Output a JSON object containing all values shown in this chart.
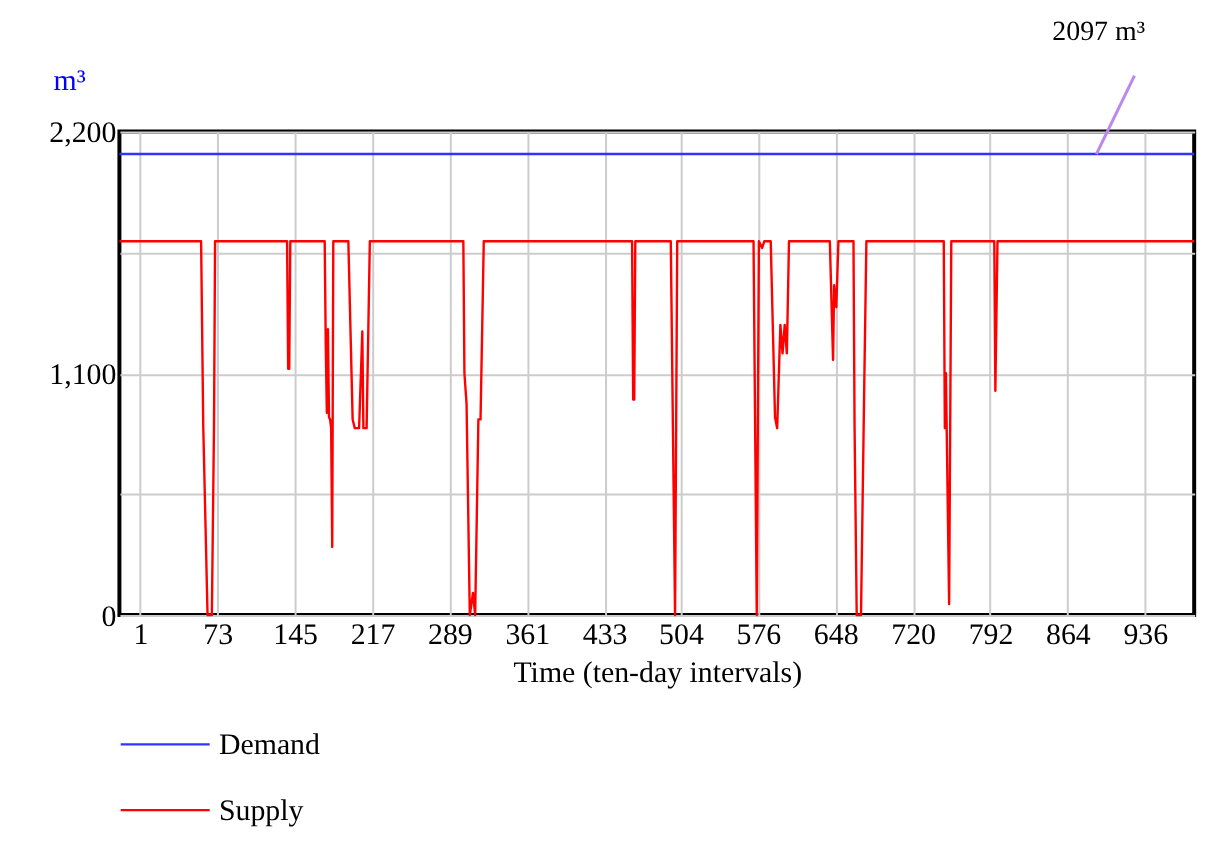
{
  "chart_data": {
    "type": "line",
    "xlabel": "Time (ten-day intervals)",
    "ylabel": "m³",
    "xlim": [
      -18,
      982
    ],
    "xticks": [
      1,
      73,
      145,
      217,
      289,
      361,
      433,
      504,
      576,
      648,
      720,
      792,
      864,
      936
    ],
    "ylim": [
      0,
      2200
    ],
    "yticks": [
      0,
      {
        "value": 550,
        "label": null
      },
      {
        "value": 1100,
        "label": "1,100"
      },
      {
        "value": 1650,
        "label": null
      },
      {
        "value": 2200,
        "label": "2,200"
      }
    ],
    "grid": true,
    "legend": "bottom",
    "line_style": "solid",
    "annotations": [
      {
        "text": "2097 m³",
        "x": 891,
        "y": 2097
      }
    ],
    "series": [
      {
        "name": "Demand",
        "color": "#3333ff",
        "x": [
          -18,
          982
        ],
        "values": [
          2097,
          2097
        ]
      },
      {
        "name": "Supply",
        "color": "#ff0000",
        "x": [
          -18,
          58,
          60,
          64,
          68,
          70,
          71,
          138,
          139,
          140,
          141,
          173,
          174,
          175,
          176,
          177,
          178,
          179,
          180,
          181,
          182,
          195,
          199,
          201,
          205,
          208,
          209,
          212,
          215,
          216,
          302,
          303,
          305,
          308,
          311,
          313,
          316,
          318,
          321,
          459,
          460,
          461,
          462,
          495,
          499,
          501,
          572,
          575,
          577,
          580,
          582,
          588,
          592,
          594,
          597,
          599,
          601,
          603,
          605,
          643,
          646,
          647,
          649,
          651,
          665,
          666,
          668,
          672,
          675,
          677,
          749,
          750,
          751,
          754,
          756,
          796,
          797,
          799,
          982
        ],
        "values": [
          1700,
          1700,
          860,
          0,
          0,
          860,
          1700,
          1700,
          1120,
          1120,
          1700,
          1700,
          1220,
          920,
          1300,
          900,
          890,
          850,
          310,
          1700,
          1700,
          1700,
          890,
          850,
          850,
          1290,
          850,
          850,
          1700,
          1700,
          1700,
          1100,
          960,
          0,
          100,
          0,
          890,
          890,
          1700,
          1700,
          980,
          980,
          1700,
          1700,
          0,
          1700,
          1700,
          0,
          1700,
          1670,
          1700,
          1700,
          900,
          850,
          1320,
          1190,
          1320,
          1190,
          1700,
          1700,
          1160,
          1500,
          1400,
          1700,
          1700,
          860,
          0,
          0,
          1040,
          1700,
          1700,
          850,
          1100,
          50,
          1700,
          1700,
          1020,
          1700,
          1700
        ]
      }
    ]
  }
}
